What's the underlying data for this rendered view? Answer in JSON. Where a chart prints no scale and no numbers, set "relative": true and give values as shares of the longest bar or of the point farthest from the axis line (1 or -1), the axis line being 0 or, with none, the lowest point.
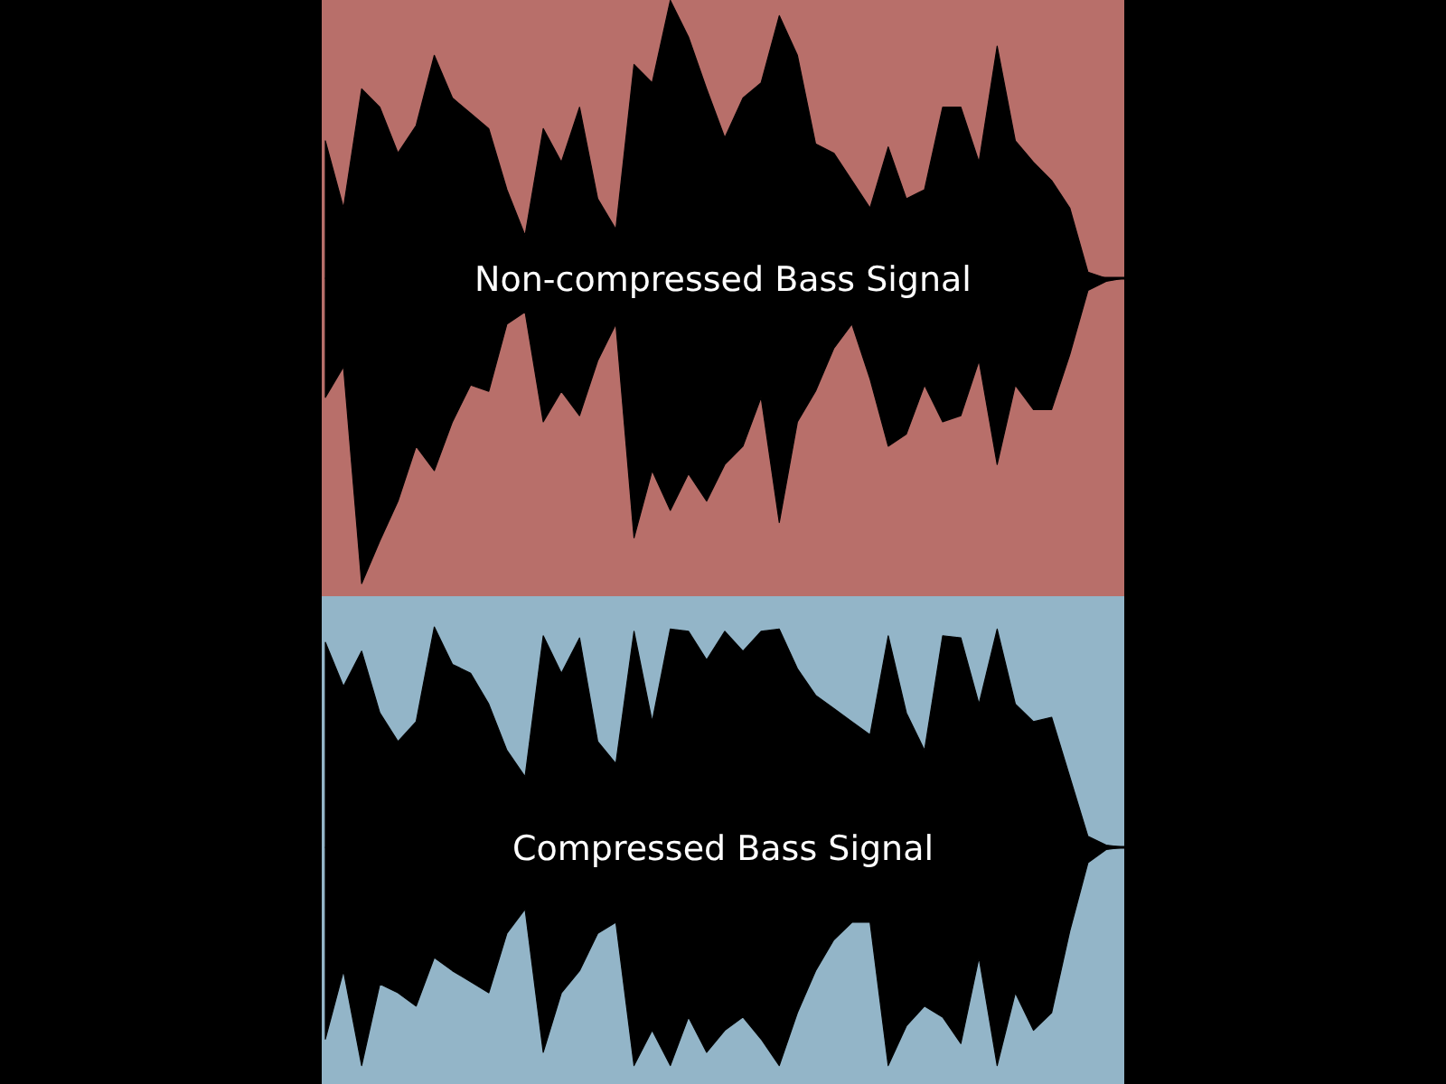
{
  "chart_data": [
    {
      "type": "area",
      "relative": true,
      "annotations": [
        "Non-compressed Bass Signal"
      ],
      "categories": [
        null,
        null,
        null,
        null,
        null,
        null,
        null,
        null,
        null,
        null,
        null,
        null,
        null,
        null,
        null,
        null,
        null,
        null,
        null,
        null,
        null,
        null,
        null,
        null,
        null,
        null,
        null,
        null,
        null,
        null,
        null,
        null,
        null,
        null,
        null,
        null,
        null,
        null,
        null,
        null,
        null,
        null,
        null,
        null,
        null
      ],
      "series": [
        {
          "color": "#000000",
          "values": [
            0.45,
            0.23,
            0.62,
            0.56,
            0.41,
            0.5,
            0.73,
            0.59,
            0.54,
            0.49,
            0.29,
            0.14,
            0.49,
            0.38,
            0.56,
            0.26,
            0.16,
            0.7,
            0.64,
            0.91,
            0.79,
            0.62,
            0.46,
            0.59,
            0.64,
            0.86,
            0.73,
            0.44,
            0.41,
            0.32,
            0.23,
            0.43,
            0.26,
            0.29,
            0.56,
            0.56,
            0.38,
            0.76,
            0.45,
            0.38,
            0.32,
            0.23,
            0.02,
            0,
            0
          ]
        },
        {
          "color": "#000000",
          "values": [
            -0.39,
            -0.29,
            -1,
            -0.86,
            -0.73,
            -0.55,
            -0.63,
            -0.47,
            -0.35,
            -0.37,
            -0.15,
            -0.11,
            -0.47,
            -0.37,
            -0.45,
            -0.27,
            -0.15,
            -0.85,
            -0.63,
            -0.76,
            -0.64,
            -0.73,
            -0.61,
            -0.55,
            -0.39,
            -0.8,
            -0.47,
            -0.37,
            -0.23,
            -0.15,
            -0.33,
            -0.55,
            -0.51,
            -0.35,
            -0.47,
            -0.45,
            -0.27,
            -0.61,
            -0.35,
            -0.43,
            -0.43,
            -0.25,
            -0.04,
            -0.01,
            0
          ]
        }
      ]
    },
    {
      "type": "area",
      "relative": true,
      "annotations": [
        "Compressed Bass Signal"
      ],
      "categories": [
        null,
        null,
        null,
        null,
        null,
        null,
        null,
        null,
        null,
        null,
        null,
        null,
        null,
        null,
        null,
        null,
        null,
        null,
        null,
        null,
        null,
        null,
        null,
        null,
        null,
        null,
        null,
        null,
        null,
        null,
        null,
        null,
        null,
        null,
        null,
        null,
        null,
        null,
        null,
        null,
        null,
        null,
        null,
        null,
        null
      ],
      "series": [
        {
          "color": "#000000",
          "values": [
            0.93,
            0.73,
            0.89,
            0.61,
            0.48,
            0.57,
            1,
            0.83,
            0.79,
            0.65,
            0.44,
            0.32,
            0.96,
            0.79,
            0.95,
            0.48,
            0.38,
            0.98,
            0.57,
            0.99,
            0.98,
            0.85,
            0.98,
            0.89,
            0.98,
            0.99,
            0.81,
            0.69,
            0.63,
            0.57,
            0.51,
            0.96,
            0.61,
            0.44,
            0.96,
            0.95,
            0.65,
            0.99,
            0.65,
            0.57,
            0.59,
            0.32,
            0.05,
            0.01,
            0
          ]
        },
        {
          "color": "#000000",
          "values": [
            -0.87,
            -0.56,
            -0.99,
            -0.62,
            -0.66,
            -0.72,
            -0.5,
            -0.56,
            -0.61,
            -0.66,
            -0.39,
            -0.28,
            -0.93,
            -0.66,
            -0.56,
            -0.39,
            -0.34,
            -0.99,
            -0.83,
            -0.99,
            -0.77,
            -0.93,
            -0.83,
            -0.77,
            -0.87,
            -0.99,
            -0.75,
            -0.56,
            -0.42,
            -0.34,
            -0.34,
            -0.99,
            -0.81,
            -0.72,
            -0.77,
            -0.89,
            -0.5,
            -0.99,
            -0.66,
            -0.83,
            -0.75,
            -0.38,
            -0.07,
            -0.01,
            0
          ]
        }
      ]
    }
  ]
}
